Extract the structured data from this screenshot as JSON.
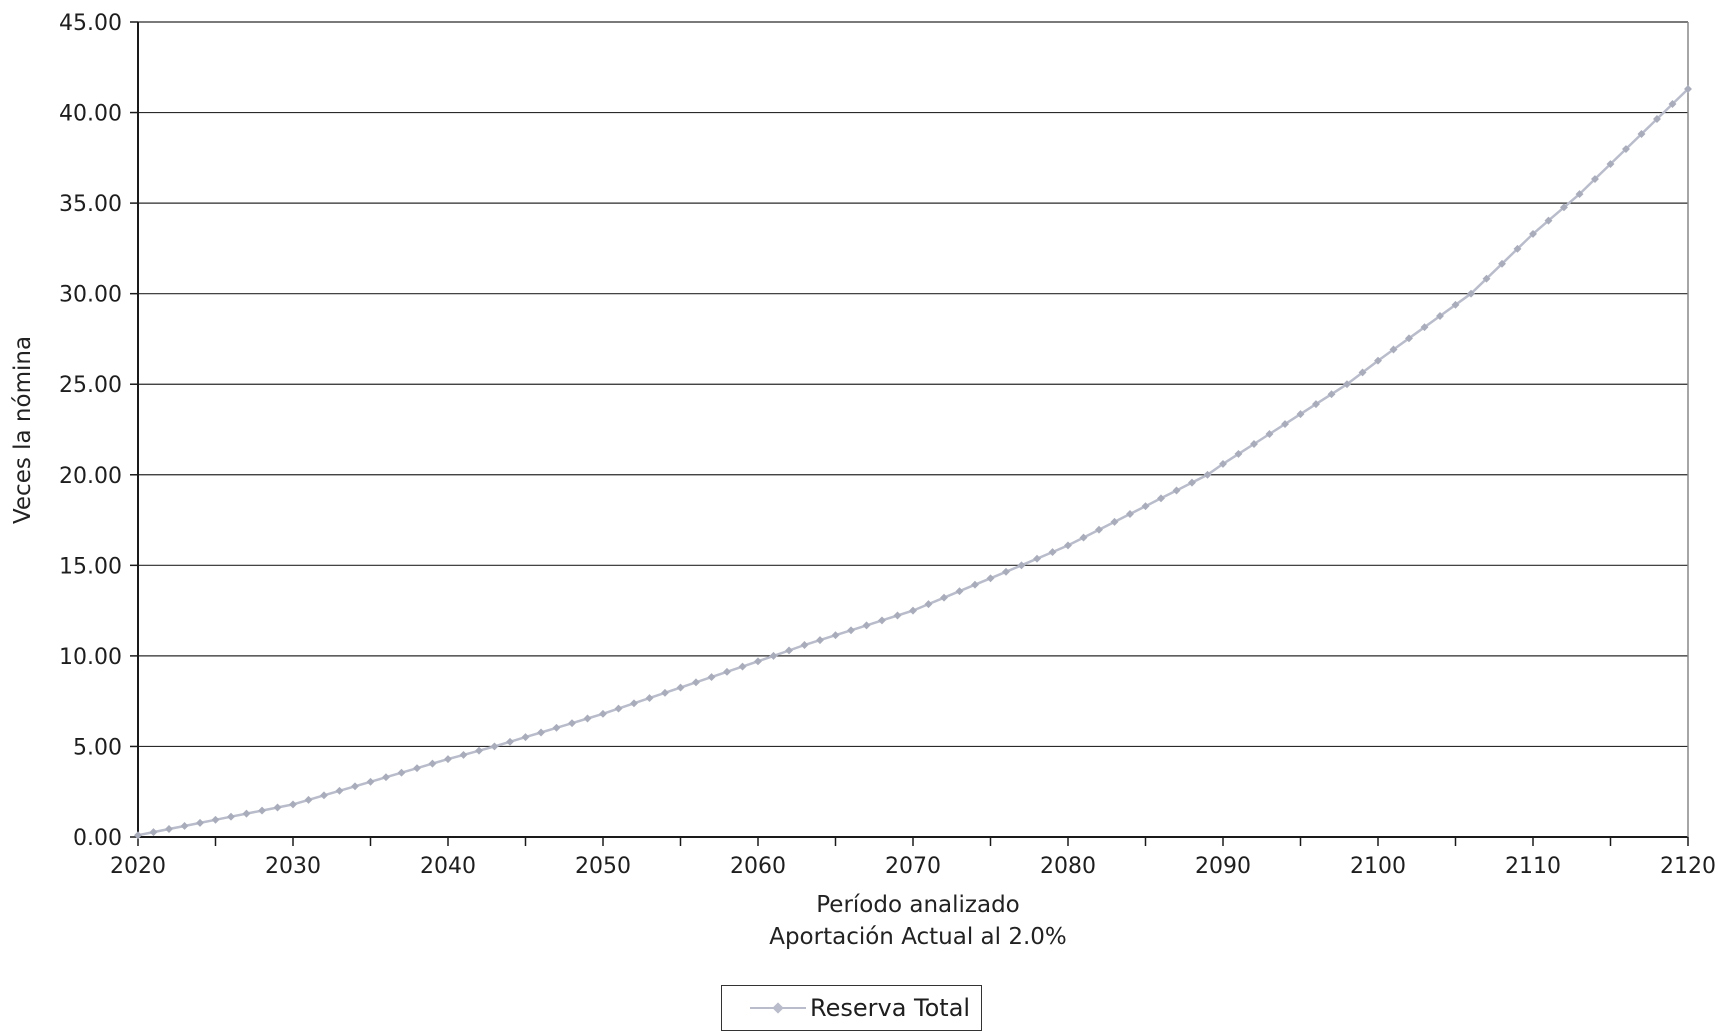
{
  "chart_data": {
    "type": "line",
    "ylabel": "Veces la nómina",
    "xlabel": "Período analizado",
    "subtitle": "Aportación Actual al 2.0%",
    "xlim": [
      2020,
      2120
    ],
    "ylim": [
      0,
      45
    ],
    "grid": true,
    "legend_position": "bottom-center",
    "x_ticks": [
      2020,
      2030,
      2040,
      2050,
      2060,
      2070,
      2080,
      2090,
      2100,
      2110,
      2120
    ],
    "x_tick_labels": [
      "2020",
      "2030",
      "2040",
      "2050",
      "2060",
      "2070",
      "2080",
      "2090",
      "2100",
      "2110",
      "2120"
    ],
    "y_ticks": [
      0,
      5,
      10,
      15,
      20,
      25,
      30,
      35,
      40,
      45
    ],
    "y_tick_labels": [
      "0.00",
      "5.00",
      "10.00",
      "15.00",
      "20.00",
      "25.00",
      "30.00",
      "35.00",
      "40.00",
      "45.00"
    ],
    "series": [
      {
        "name": "Reserva Total",
        "color": "#b9bccb",
        "marker": "diamond",
        "x": [
          2020,
          2030,
          2040,
          2043,
          2050,
          2060,
          2063,
          2070,
          2077,
          2080,
          2089,
          2090,
          2098,
          2100,
          2106,
          2110,
          2113,
          2120
        ],
        "y": [
          0.1,
          1.8,
          4.3,
          5.0,
          6.8,
          9.7,
          10.6,
          12.5,
          15.0,
          16.1,
          20.0,
          20.6,
          25.0,
          26.3,
          30.0,
          33.3,
          35.5,
          41.3
        ]
      }
    ]
  }
}
